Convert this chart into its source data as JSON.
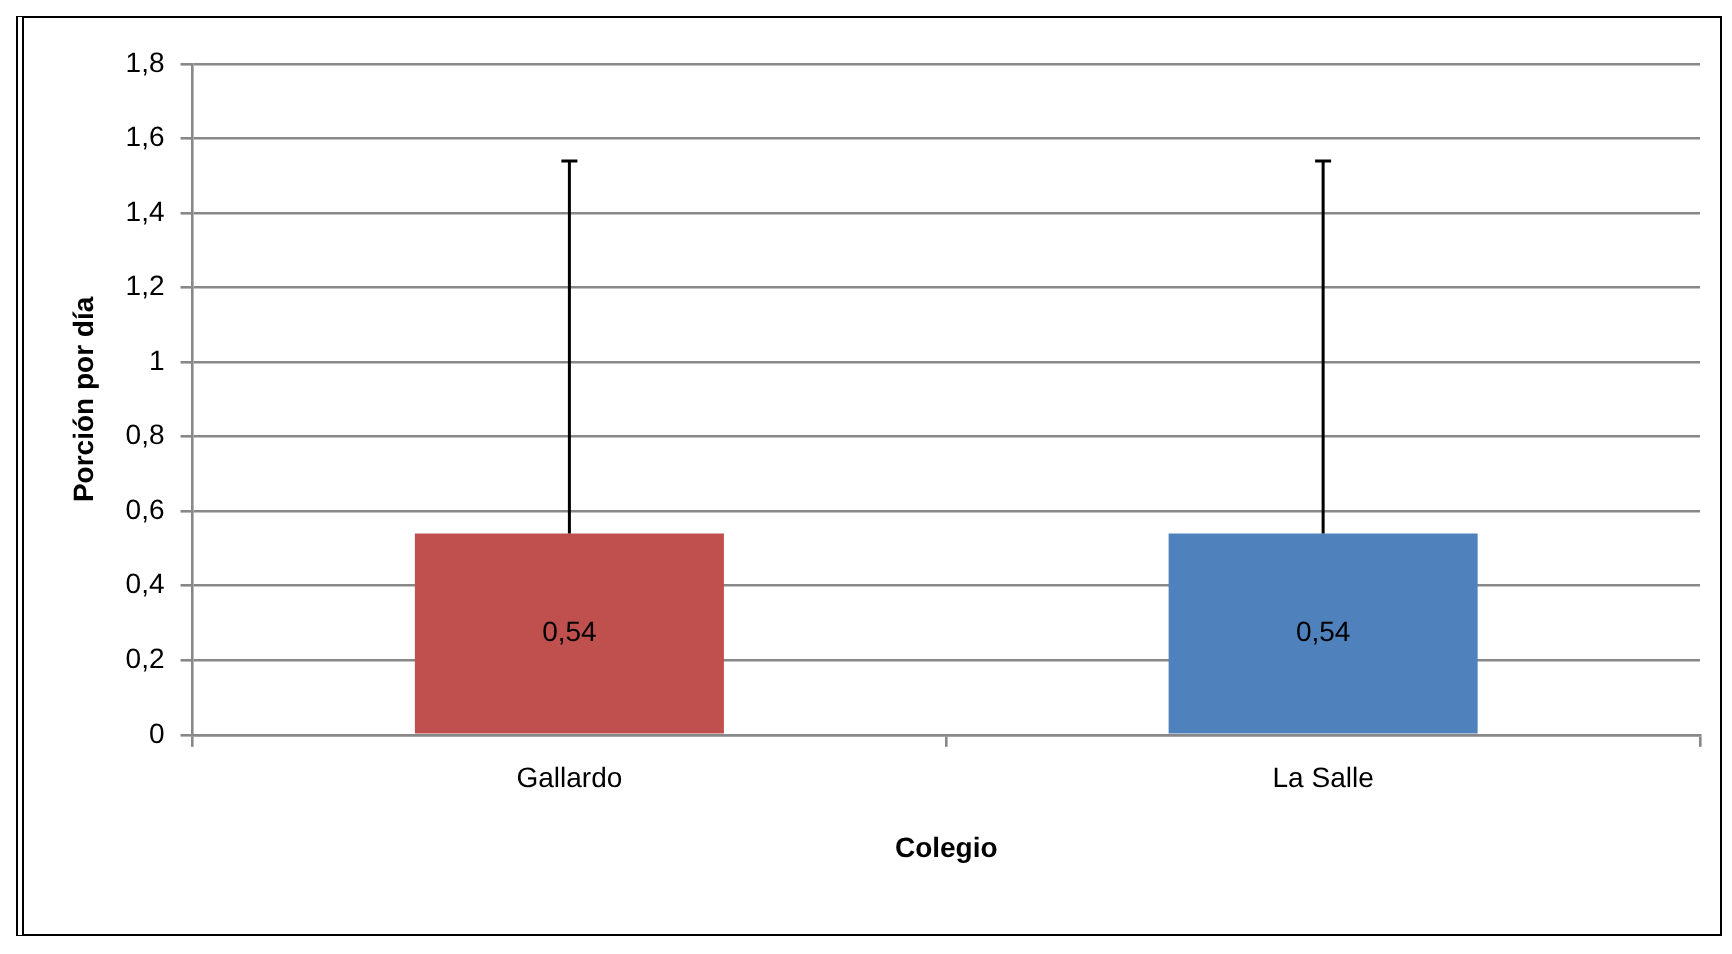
{
  "chart_data": {
    "type": "bar",
    "xlabel": "Colegio",
    "ylabel": "Porción por día",
    "categories": [
      "Gallardo",
      "La Salle"
    ],
    "values": [
      0.54,
      0.54
    ],
    "colors": [
      "#c0504d",
      "#4f81bd"
    ],
    "errors": [
      [
        0.54,
        1.54
      ],
      [
        0.54,
        1.54
      ]
    ],
    "value_labels": [
      "0,54",
      "0,54"
    ],
    "ylim": [
      0,
      1.8
    ],
    "yticks": [
      0,
      {
        "value": 0.2,
        "label": "0,2"
      },
      {
        "value": 0.4,
        "label": "0,4"
      },
      {
        "value": 0.6,
        "label": "0,6"
      },
      {
        "value": 0.8,
        "label": "0,8"
      },
      1,
      {
        "value": 1.2,
        "label": "1,2"
      },
      {
        "value": 1.4,
        "label": "1,4"
      },
      {
        "value": 1.6,
        "label": "1,6"
      },
      {
        "value": 1.8,
        "label": "1,8"
      }
    ],
    "grid": "y",
    "legend": false
  }
}
